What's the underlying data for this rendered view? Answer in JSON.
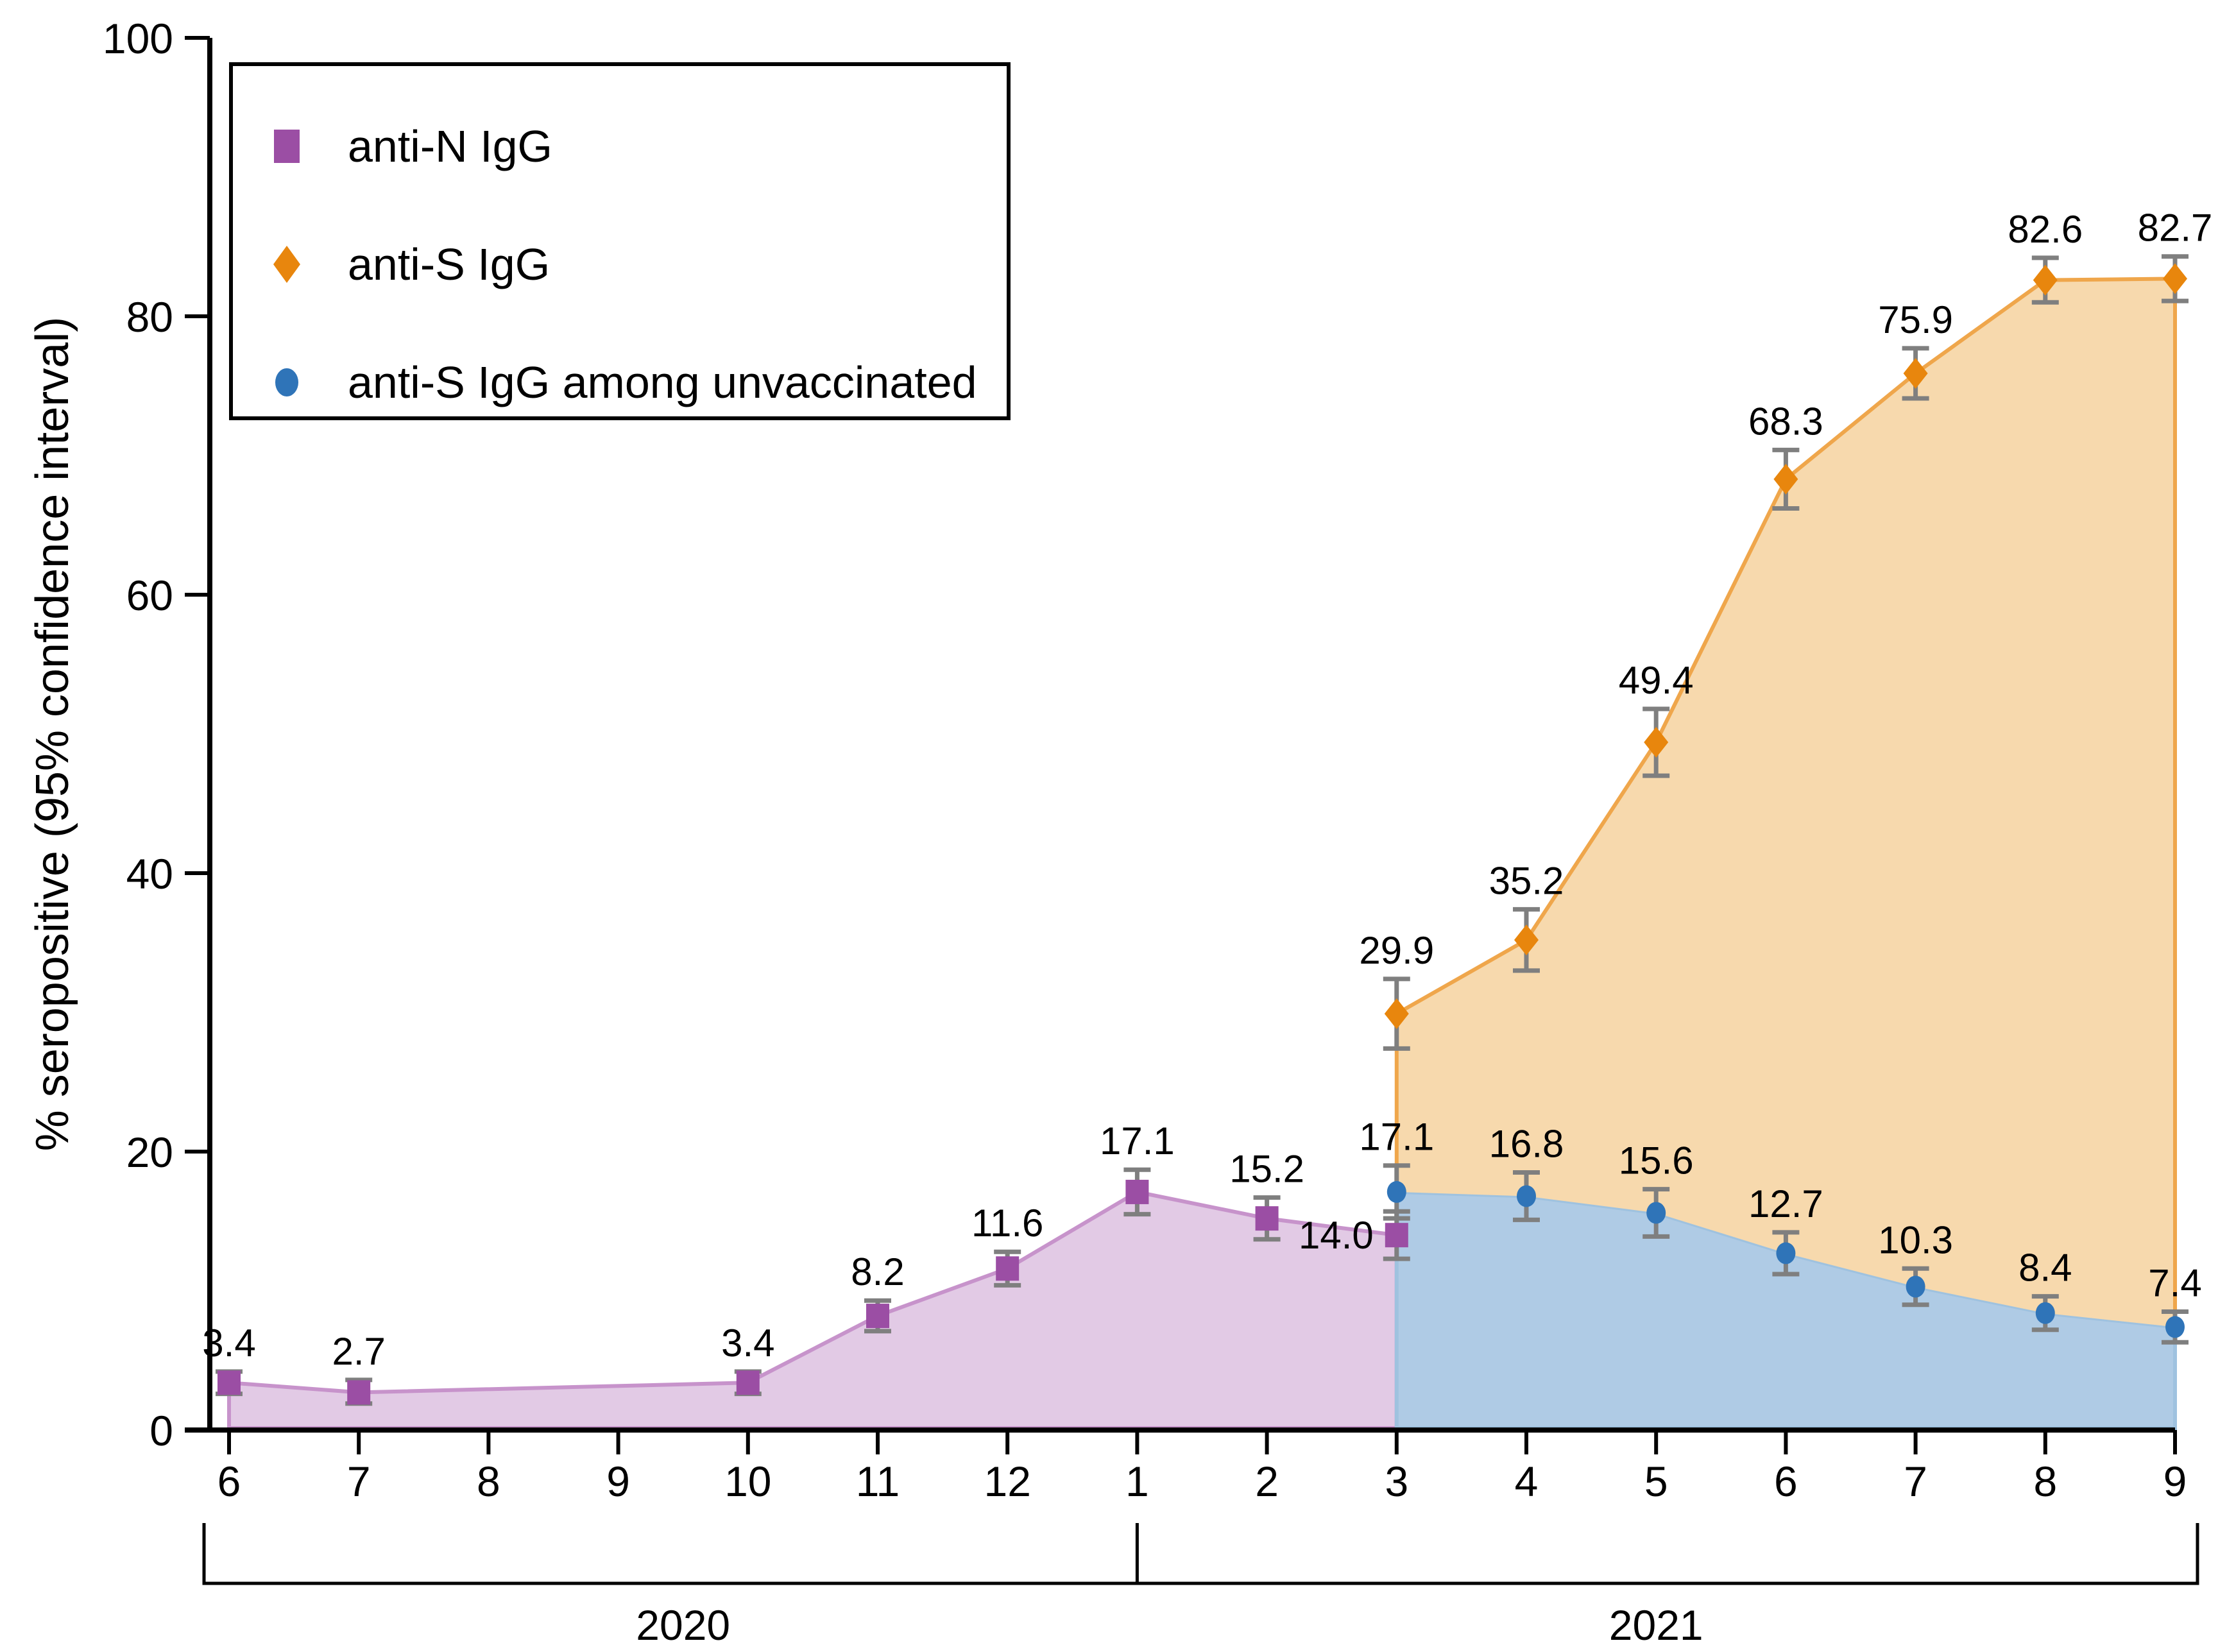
{
  "chart_data": {
    "type": "line",
    "title": "",
    "xlabel": "",
    "ylabel": "% seropositive (95% confidence interval)",
    "ylim": [
      0,
      100
    ],
    "y_ticks": [
      0,
      20,
      40,
      60,
      80,
      100
    ],
    "x_tick_labels": [
      "6",
      "7",
      "8",
      "9",
      "10",
      "11",
      "12",
      "1",
      "2",
      "3",
      "4",
      "5",
      "6",
      "7",
      "8",
      "9"
    ],
    "year_groups": [
      {
        "label": "2020",
        "from_index": 0,
        "to_index": 7
      },
      {
        "label": "2021",
        "from_index": 7,
        "to_index": 15
      }
    ],
    "grid": false,
    "legend_position": "top-left",
    "error_bar_color": "#7F7F7F",
    "axis_color": "#000000",
    "series": [
      {
        "name": "anti-N IgG",
        "marker": "square",
        "color": "#9B4EA4",
        "line_color": "#C793CB",
        "fill_color": "#E2CAE5",
        "area": "to-zero",
        "points": [
          {
            "x_index": 0,
            "month": "6",
            "year": "2020",
            "value": 3.4,
            "label": "3.4",
            "ci": [
              2.6,
              4.2
            ]
          },
          {
            "x_index": 1,
            "month": "7",
            "year": "2020",
            "value": 2.7,
            "label": "2.7",
            "ci": [
              1.9,
              3.6
            ]
          },
          {
            "x_index": 4,
            "month": "10",
            "year": "2020",
            "value": 3.4,
            "label": "3.4",
            "ci": [
              2.6,
              4.2
            ]
          },
          {
            "x_index": 5,
            "month": "11",
            "year": "2020",
            "value": 8.2,
            "label": "8.2",
            "ci": [
              7.1,
              9.3
            ]
          },
          {
            "x_index": 6,
            "month": "12",
            "year": "2020",
            "value": 11.6,
            "label": "11.6",
            "ci": [
              10.4,
              12.8
            ]
          },
          {
            "x_index": 7,
            "month": "1",
            "year": "2021",
            "value": 17.1,
            "label": "17.1",
            "ci": [
              15.5,
              18.7
            ]
          },
          {
            "x_index": 8,
            "month": "2",
            "year": "2021",
            "value": 15.2,
            "label": "15.2",
            "ci": [
              13.7,
              16.7
            ]
          },
          {
            "x_index": 9,
            "month": "3",
            "year": "2021",
            "value": 14.0,
            "label": "14.0",
            "ci": [
              12.3,
              15.7
            ],
            "label_pos": "left"
          }
        ]
      },
      {
        "name": "anti-S IgG",
        "marker": "diamond",
        "color": "#E8860D",
        "line_color": "#EFA64B",
        "fill_color": "#F7D9AD",
        "area": "between-lower-series",
        "points": [
          {
            "x_index": 9,
            "month": "3",
            "year": "2021",
            "value": 29.9,
            "label": "29.9",
            "ci": [
              27.4,
              32.4
            ]
          },
          {
            "x_index": 10,
            "month": "4",
            "year": "2021",
            "value": 35.2,
            "label": "35.2",
            "ci": [
              33.0,
              37.4
            ]
          },
          {
            "x_index": 11,
            "month": "5",
            "year": "2021",
            "value": 49.4,
            "label": "49.4",
            "ci": [
              47.0,
              51.8
            ]
          },
          {
            "x_index": 12,
            "month": "6",
            "year": "2021",
            "value": 68.3,
            "label": "68.3",
            "ci": [
              66.2,
              70.4
            ]
          },
          {
            "x_index": 13,
            "month": "7",
            "year": "2021",
            "value": 75.9,
            "label": "75.9",
            "ci": [
              74.1,
              77.7
            ]
          },
          {
            "x_index": 14,
            "month": "8",
            "year": "2021",
            "value": 82.6,
            "label": "82.6",
            "ci": [
              81.0,
              84.2
            ]
          },
          {
            "x_index": 15,
            "month": "9",
            "year": "2021",
            "value": 82.7,
            "label": "82.7",
            "ci": [
              81.1,
              84.3
            ]
          }
        ]
      },
      {
        "name": "anti-S IgG among unvaccinated",
        "marker": "circle",
        "color": "#2F74B8",
        "line_color": "#9FC2DF",
        "fill_color": "#AFCBE5",
        "area": "to-zero",
        "points": [
          {
            "x_index": 9,
            "month": "3",
            "year": "2021",
            "value": 17.1,
            "label": "17.1",
            "ci": [
              15.2,
              19.0
            ]
          },
          {
            "x_index": 10,
            "month": "4",
            "year": "2021",
            "value": 16.8,
            "label": "16.8",
            "ci": [
              15.1,
              18.5
            ]
          },
          {
            "x_index": 11,
            "month": "5",
            "year": "2021",
            "value": 15.6,
            "label": "15.6",
            "ci": [
              13.9,
              17.3
            ]
          },
          {
            "x_index": 12,
            "month": "6",
            "year": "2021",
            "value": 12.7,
            "label": "12.7",
            "ci": [
              11.2,
              14.2
            ]
          },
          {
            "x_index": 13,
            "month": "7",
            "year": "2021",
            "value": 10.3,
            "label": "10.3",
            "ci": [
              9.0,
              11.6
            ]
          },
          {
            "x_index": 14,
            "month": "8",
            "year": "2021",
            "value": 8.4,
            "label": "8.4",
            "ci": [
              7.2,
              9.6
            ]
          },
          {
            "x_index": 15,
            "month": "9",
            "year": "2021",
            "value": 7.4,
            "label": "7.4",
            "ci": [
              6.3,
              8.5
            ]
          }
        ]
      }
    ]
  }
}
